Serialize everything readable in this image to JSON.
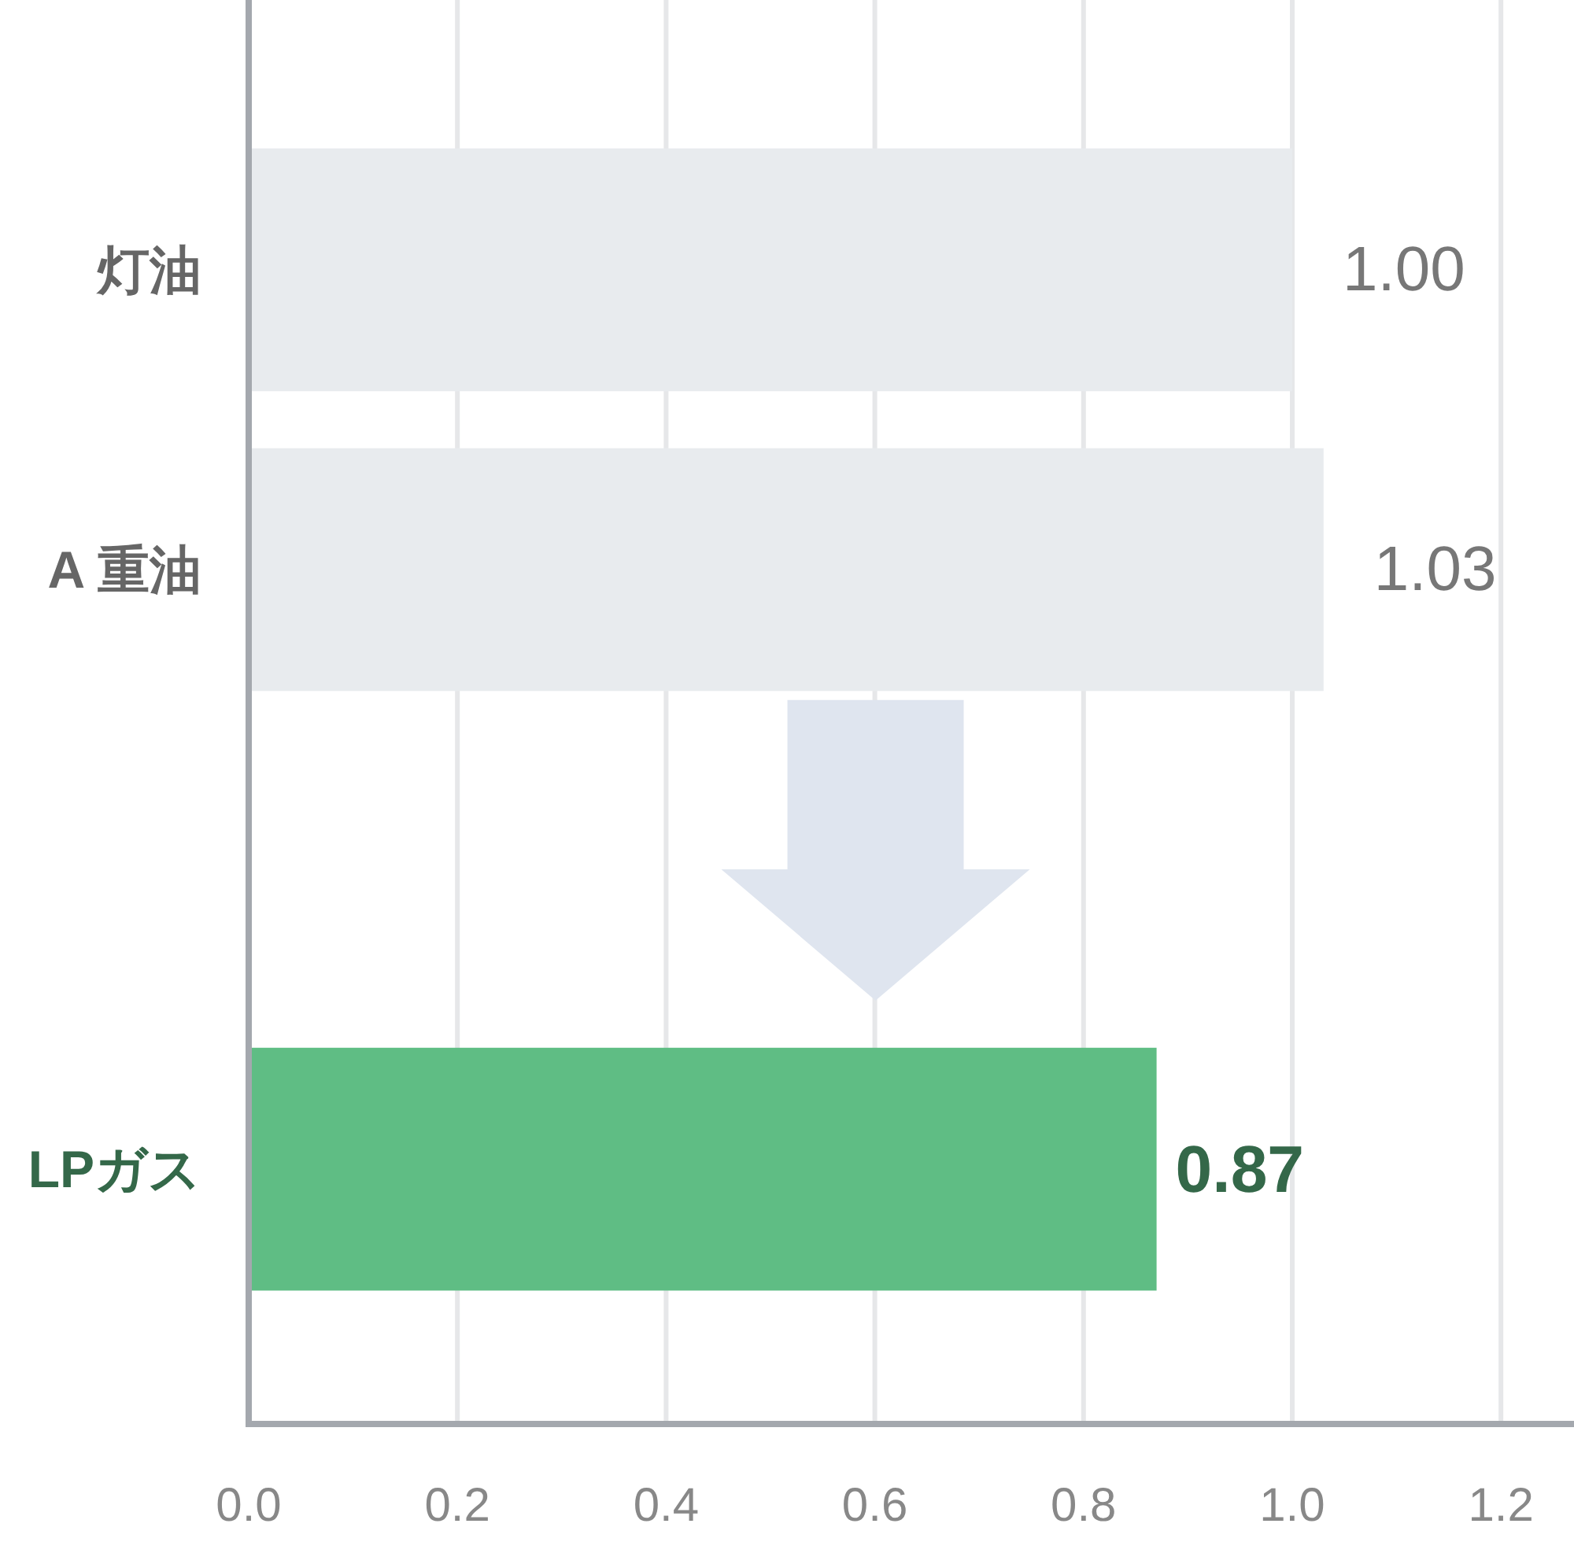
{
  "chart_data": {
    "type": "bar",
    "orientation": "horizontal",
    "categories": [
      "灯油",
      "A 重油",
      null,
      "LPガス"
    ],
    "values": [
      1.0,
      1.03,
      null,
      0.87
    ],
    "colors": [
      "#e8ebee",
      "#e8ebee",
      null,
      "#5fbd84"
    ],
    "value_labels": [
      "1.00",
      "1.03",
      null,
      "0.87"
    ],
    "xlim": [
      0,
      1.27
    ],
    "xticks": [
      {
        "value": 0,
        "label": "0.0"
      },
      {
        "value": 0.2,
        "label": "0.2"
      },
      {
        "value": 0.4,
        "label": "0.4"
      },
      {
        "value": 0.6,
        "label": "0.6"
      },
      {
        "value": 0.8,
        "label": "0.8"
      },
      {
        "value": 1.0,
        "label": "1.0"
      },
      {
        "value": 1.2,
        "label": "1.2"
      }
    ],
    "grid": "x"
  }
}
